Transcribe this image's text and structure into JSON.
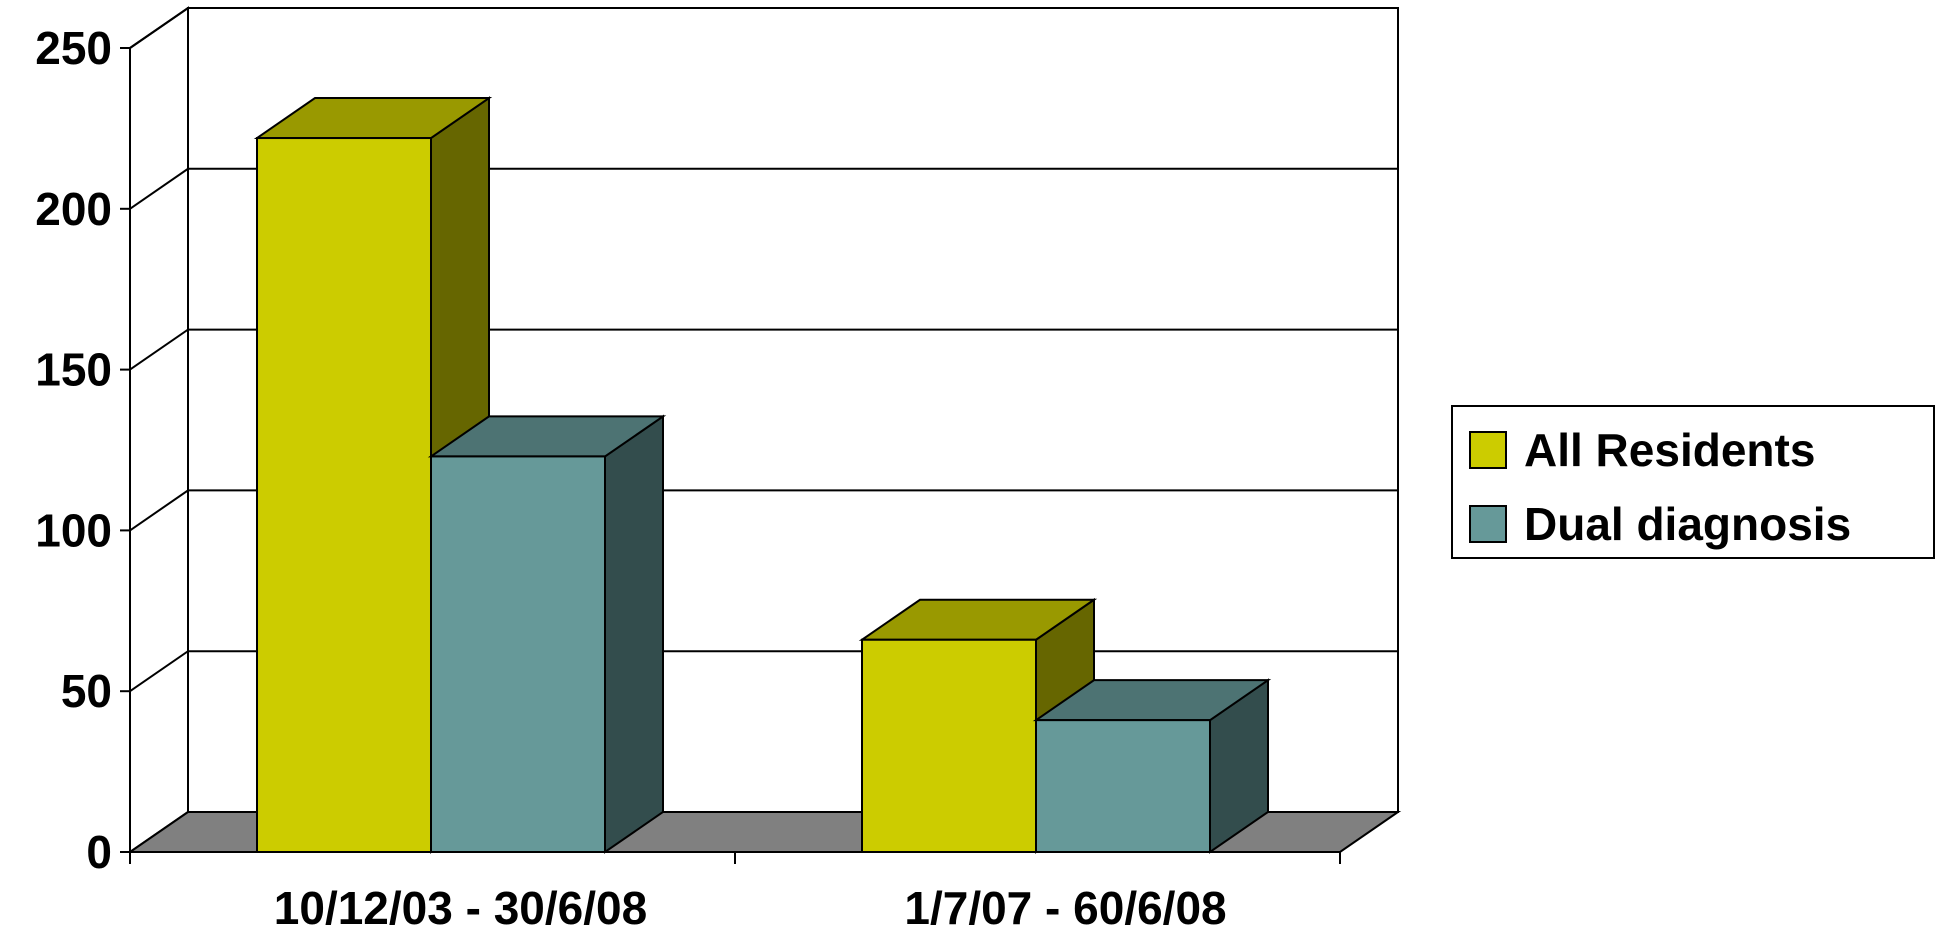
{
  "chart_data": {
    "type": "bar",
    "title": "",
    "xlabel": "",
    "ylabel": "",
    "categories": [
      "10/12/03 - 30/6/08",
      "1/7/07 - 60/6/08"
    ],
    "series": [
      {
        "name": "All Residents",
        "values": [
          222,
          66
        ],
        "color": "#cccc00"
      },
      {
        "name": "Dual diagnosis",
        "values": [
          123,
          41
        ],
        "color": "#669999"
      }
    ],
    "ylim": [
      0,
      250
    ],
    "yticks": [
      "0",
      "50",
      "100",
      "150",
      "200",
      "250"
    ],
    "grid": true,
    "legend_position": "right",
    "three_d": true
  }
}
